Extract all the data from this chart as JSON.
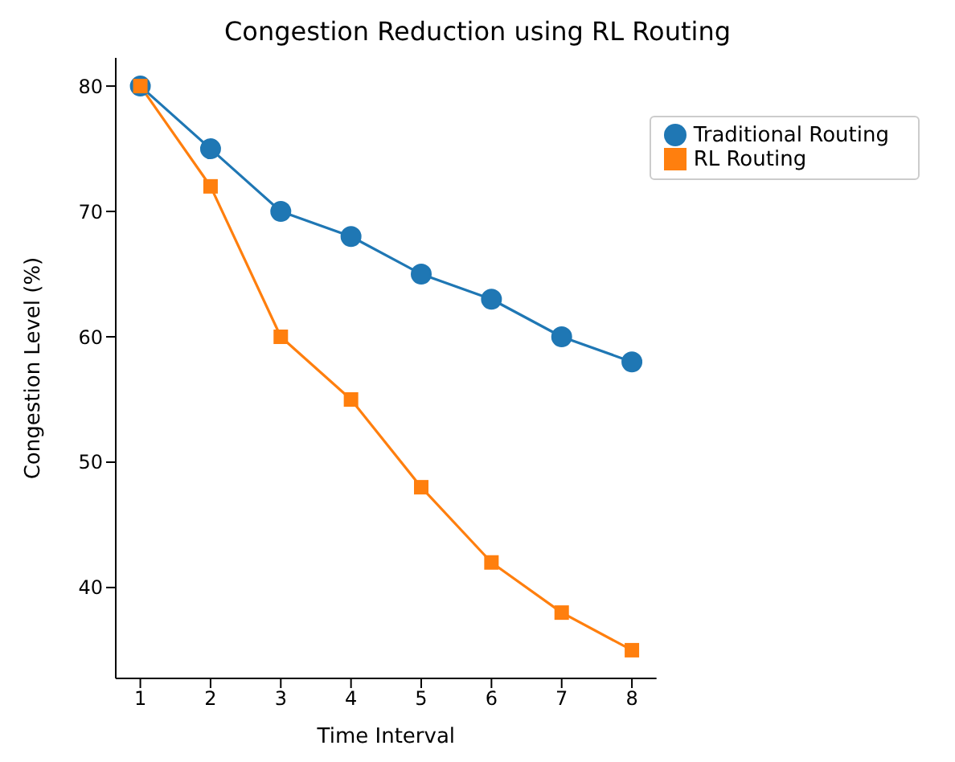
{
  "chart_data": {
    "type": "line",
    "title": "Congestion Reduction using RL Routing",
    "xlabel": "Time Interval",
    "ylabel": "Congestion Level (%)",
    "x": [
      1,
      2,
      3,
      4,
      5,
      6,
      7,
      8
    ],
    "series": [
      {
        "name": "Traditional Routing",
        "color": "#1f77b4",
        "marker": "circle",
        "values": [
          80,
          75,
          70,
          68,
          65,
          63,
          60,
          58
        ]
      },
      {
        "name": "RL Routing",
        "color": "#ff7f0e",
        "marker": "square",
        "values": [
          80,
          72,
          60,
          55,
          48,
          42,
          38,
          35
        ]
      }
    ],
    "xlim": [
      0.65,
      8.35
    ],
    "xticks": [
      1,
      2,
      3,
      4,
      5,
      6,
      7,
      8
    ],
    "ylim": [
      32.75,
      82.25
    ],
    "yticks": [
      40,
      50,
      60,
      70,
      80
    ],
    "grid": false,
    "legend": "top right",
    "line_style": "solid"
  }
}
